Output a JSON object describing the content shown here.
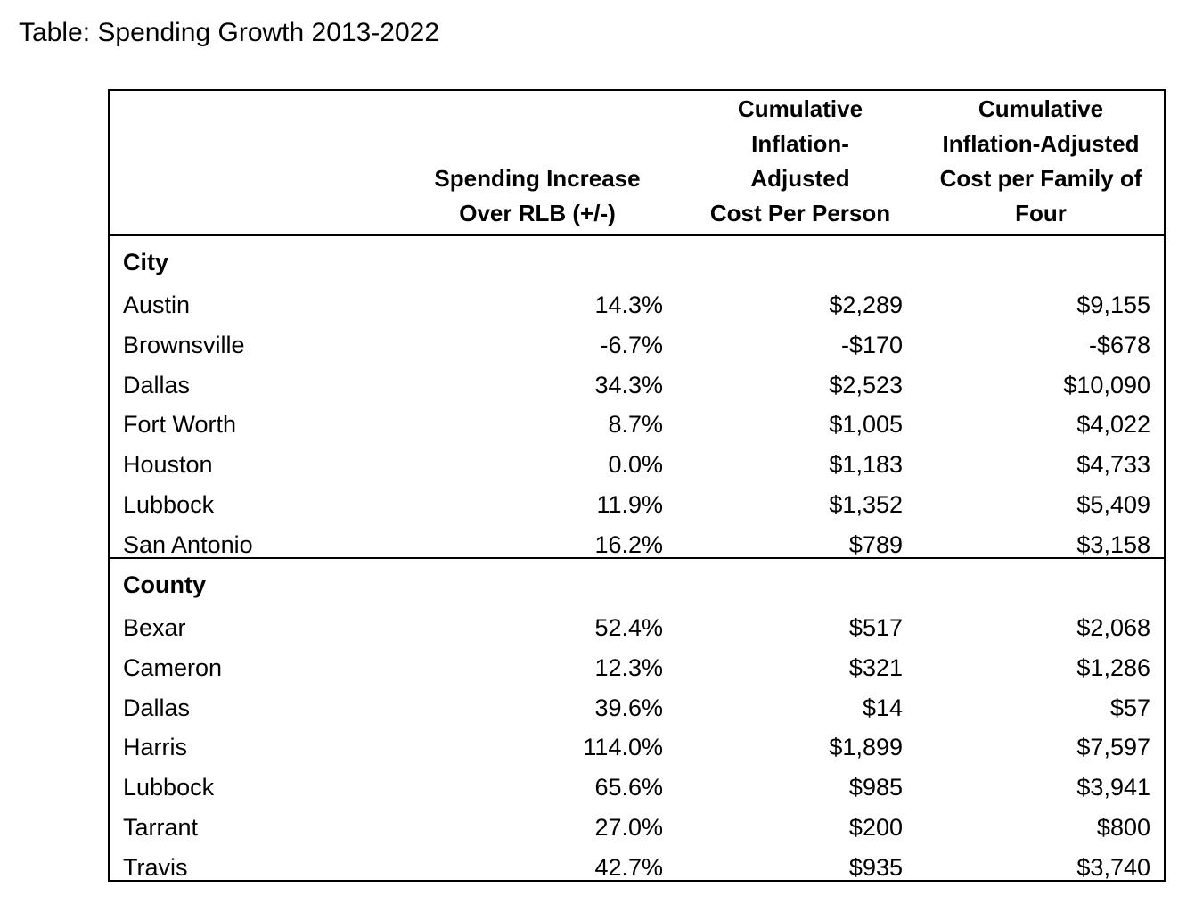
{
  "title": "Table: Spending Growth 2013-2022",
  "columns": {
    "spending_increase": [
      "Spending Increase",
      "Over RLB (+/-)"
    ],
    "cost_per_person": [
      "Cumulative",
      "Inflation-",
      "Adjusted",
      "Cost Per Person"
    ],
    "cost_per_family": [
      "Cumulative",
      "Inflation-Adjusted",
      "Cost per Family of",
      "Four"
    ]
  },
  "sections": [
    {
      "label": "City",
      "rows": [
        {
          "name": "Austin",
          "increase": "14.3%",
          "per_person": "$2,289",
          "per_family": "$9,155"
        },
        {
          "name": "Brownsville",
          "increase": "-6.7%",
          "per_person": "-$170",
          "per_family": "-$678"
        },
        {
          "name": "Dallas",
          "increase": "34.3%",
          "per_person": "$2,523",
          "per_family": "$10,090"
        },
        {
          "name": "Fort Worth",
          "increase": "8.7%",
          "per_person": "$1,005",
          "per_family": "$4,022"
        },
        {
          "name": "Houston",
          "increase": "0.0%",
          "per_person": "$1,183",
          "per_family": "$4,733"
        },
        {
          "name": "Lubbock",
          "increase": "11.9%",
          "per_person": "$1,352",
          "per_family": "$5,409"
        },
        {
          "name": "San Antonio",
          "increase": "16.2%",
          "per_person": "$789",
          "per_family": "$3,158"
        }
      ]
    },
    {
      "label": "County",
      "rows": [
        {
          "name": "Bexar",
          "increase": "52.4%",
          "per_person": "$517",
          "per_family": "$2,068"
        },
        {
          "name": "Cameron",
          "increase": "12.3%",
          "per_person": "$321",
          "per_family": "$1,286"
        },
        {
          "name": "Dallas",
          "increase": "39.6%",
          "per_person": "$14",
          "per_family": "$57"
        },
        {
          "name": "Harris",
          "increase": "114.0%",
          "per_person": "$1,899",
          "per_family": "$7,597"
        },
        {
          "name": "Lubbock",
          "increase": "65.6%",
          "per_person": "$985",
          "per_family": "$3,941"
        },
        {
          "name": "Tarrant",
          "increase": "27.0%",
          "per_person": "$200",
          "per_family": "$800"
        },
        {
          "name": "Travis",
          "increase": "42.7%",
          "per_person": "$935",
          "per_family": "$3,740"
        }
      ]
    }
  ]
}
